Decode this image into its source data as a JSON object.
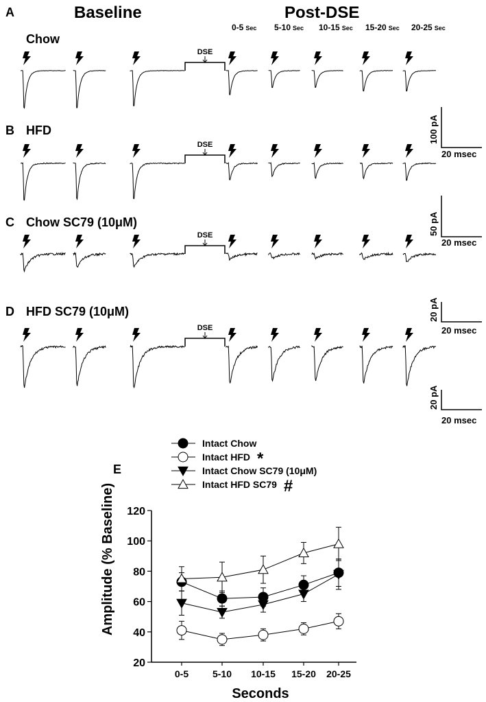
{
  "top": {
    "baseline": "Baseline",
    "post": "Post-DSE",
    "windows": [
      {
        "range": "0-5",
        "unit": "Sec"
      },
      {
        "range": "5-10",
        "unit": "Sec"
      },
      {
        "range": "10-15",
        "unit": "Sec"
      },
      {
        "range": "15-20",
        "unit": "Sec"
      },
      {
        "range": "20-25",
        "unit": "Sec"
      }
    ],
    "dse_label": "DSE"
  },
  "panels": [
    {
      "letter": "A",
      "label": "Chow",
      "scale_y": "100 pA",
      "scale_x": "20 msec"
    },
    {
      "letter": "B",
      "label": "HFD",
      "scale_y": "50 pA",
      "scale_x": "20 msec"
    },
    {
      "letter": "C",
      "label": "Chow SC79 (10μM)",
      "scale_y": "20 pA",
      "scale_x": "20 msec"
    },
    {
      "letter": "D",
      "label": "HFD SC79 (10μM)",
      "scale_y": "20 pA",
      "scale_x": "20 msec"
    }
  ],
  "trace_amplitudes": [
    [
      1.0,
      1.0,
      0.95,
      0.65,
      0.45,
      0.45,
      0.55,
      0.55
    ],
    [
      1.0,
      0.95,
      0.95,
      0.45,
      0.35,
      0.4,
      0.4,
      0.45
    ],
    [
      0.75,
      0.6,
      0.6,
      0.25,
      0.2,
      0.2,
      0.25,
      0.35
    ],
    [
      0.9,
      0.85,
      0.9,
      0.8,
      0.75,
      0.75,
      0.8,
      0.85
    ]
  ],
  "icons": {
    "stimulus": "lightning-bolt-icon"
  },
  "chart_data": {
    "type": "line",
    "panel_letter": "E",
    "xlabel": "Seconds",
    "ylabel": "Amplitude (% Baseline)",
    "categories": [
      "0-5",
      "5-10",
      "10-15",
      "15-20",
      "20-25"
    ],
    "ylim": [
      20,
      120
    ],
    "yticks": [
      20,
      40,
      60,
      80,
      100,
      120
    ],
    "legend_position": "top",
    "series": [
      {
        "name": "Intact Chow",
        "marker": "circle-filled",
        "sig": "",
        "values": [
          73,
          62,
          63,
          71,
          79
        ],
        "err": [
          6,
          5,
          6,
          6,
          9
        ]
      },
      {
        "name": "Intact HFD",
        "marker": "circle-open",
        "sig": "*",
        "values": [
          41,
          35,
          38,
          42,
          47
        ],
        "err": [
          6,
          4,
          4,
          4,
          5
        ]
      },
      {
        "name": "Intact Chow SC79 (10μM)",
        "marker": "triangle-down-filled",
        "sig": "",
        "values": [
          59,
          53,
          58,
          65,
          78
        ],
        "err": [
          8,
          4,
          5,
          5,
          10
        ]
      },
      {
        "name": "Intact HFD SC79",
        "marker": "triangle-up-open",
        "sig": "#",
        "values": [
          75,
          76,
          81,
          92,
          98
        ],
        "err": [
          8,
          10,
          9,
          7,
          11
        ]
      }
    ]
  }
}
